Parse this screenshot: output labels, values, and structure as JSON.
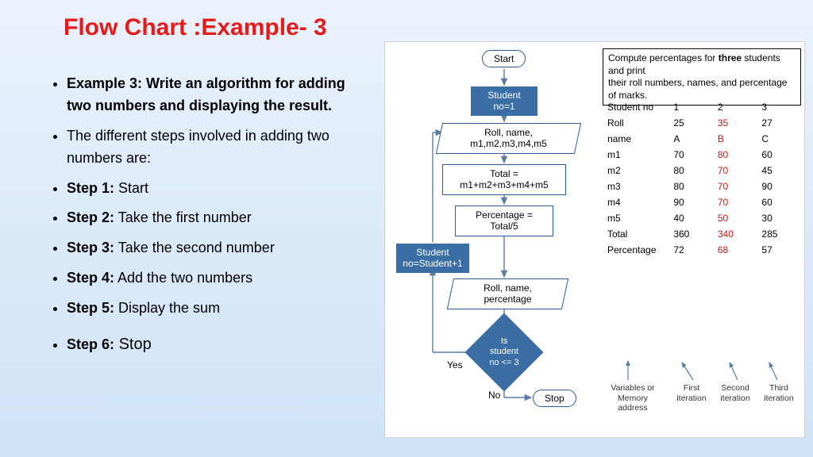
{
  "title": "Flow Chart :Example- 3",
  "left": {
    "intro_bold": "Example 3: Write an algorithm for adding two numbers and displaying the result.",
    "sub": "The different steps involved in adding two numbers are:",
    "steps": [
      {
        "label": "Step 1:",
        "text": " Start"
      },
      {
        "label": "Step 2:",
        "text": " Take the first number"
      },
      {
        "label": "Step 3:",
        "text": " Take the second number"
      },
      {
        "label": "Step 4:",
        "text": " Add the two numbers"
      },
      {
        "label": "Step 5:",
        "text": " Display the sum"
      },
      {
        "label": "Step 6:",
        "text": " Stop"
      }
    ]
  },
  "flowchart": {
    "type": "flowchart",
    "background_color": "#ffffff",
    "fill_color": "#3a6ea5",
    "outline_color": "#2c5a93",
    "arrow_color": "#5b7da3",
    "nodes": {
      "start": "Start",
      "init": "Student no=1",
      "read": "Roll, name, m1,m2,m3,m4,m5",
      "total": "Total = m1+m2+m3+m4+m5",
      "pct": "Percentage = Total/5",
      "incr": "Student no=Student+1",
      "out": "Roll, name, percentage",
      "dec_l1": "Is",
      "dec_l2": "student",
      "dec_l3": "no <= 3",
      "yes": "Yes",
      "no": "No",
      "stop": "Stop"
    }
  },
  "description": {
    "l1a": "Compute percentages for ",
    "l1b": "three",
    "l1c": " students and print",
    "l2": "their roll numbers, names, and percentage of marks."
  },
  "table": {
    "header": [
      "Student no",
      "1",
      "2",
      "3"
    ],
    "rows": [
      {
        "label": "Roll",
        "v": [
          "25",
          "35",
          "27"
        ],
        "hi": 1
      },
      {
        "label": "name",
        "v": [
          "A",
          "B",
          "C"
        ],
        "hi": 1
      },
      {
        "label": "m1",
        "v": [
          "70",
          "80",
          "60"
        ],
        "hi": 1
      },
      {
        "label": "m2",
        "v": [
          "80",
          "70",
          "45"
        ],
        "hi": 1
      },
      {
        "label": "m3",
        "v": [
          "80",
          "70",
          "90"
        ],
        "hi": 1
      },
      {
        "label": "m4",
        "v": [
          "90",
          "70",
          "60"
        ],
        "hi": 1
      },
      {
        "label": "m5",
        "v": [
          "40",
          "50",
          "30"
        ],
        "hi": 1
      },
      {
        "label": "Total",
        "v": [
          "360",
          "340",
          "285"
        ],
        "hi": 1
      },
      {
        "label": "Percentage",
        "v": [
          "72",
          "68",
          "57"
        ],
        "hi": 1
      }
    ],
    "iter_labels": [
      "Variables or Memory address",
      "First iteration",
      "Second iteration",
      "Third iteration"
    ]
  },
  "colors": {
    "title": "#e31b1b",
    "highlight": "#d01616",
    "bg_top": "#eaf2fb",
    "bg_bottom": "#cfe2f6"
  }
}
